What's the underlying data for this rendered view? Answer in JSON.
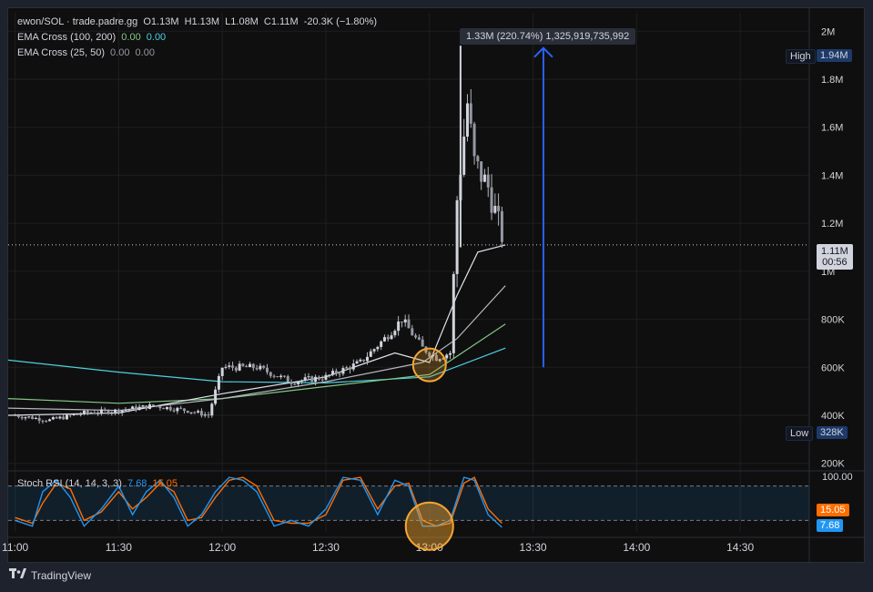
{
  "header": {
    "symbol": "ewon/SOL · trade.padre.gg",
    "open": "O1.13M",
    "high": "H1.13M",
    "low": "L1.08M",
    "close": "C1.11M",
    "change": "-20.3K (−1.80%)"
  },
  "indicators": [
    {
      "name": "EMA Cross (100, 200)",
      "v1": "0.00",
      "v2": "0.00",
      "c1": "#81c784",
      "c2": "#4dd0e1"
    },
    {
      "name": "EMA Cross (25, 50)",
      "v1": "0.00",
      "v2": "0.00",
      "c1": "#9598a1",
      "c2": "#9598a1"
    }
  ],
  "measure": {
    "label": "1.33M (220.74%) 1,325,919,735,992"
  },
  "tags": {
    "high_label": "High",
    "high_value": "1.94M",
    "low_label": "Low",
    "low_value": "328K",
    "price": "1.11M",
    "countdown": "00:56",
    "stoch_k": "7.68",
    "stoch_d": "15.05"
  },
  "stoch": {
    "label": "Stoch RSI (14, 14, 3, 3)",
    "k": "7.68",
    "d": "15.05",
    "top_tick": "100.00"
  },
  "footer": {
    "brand": "TradingView"
  },
  "colors": {
    "up": "#d1d4dc",
    "down": "#d1d4dc",
    "ema200": "#4dd0e1",
    "ema100": "#81c784",
    "ema50": "#b2b5be",
    "ema25": "#e0e3eb",
    "k": "#2196f3",
    "d": "#ff6d00",
    "arrow": "#2962ff",
    "circle": "#f7a630"
  },
  "chart_data": {
    "type": "candlestick",
    "y_ticks": [
      "2M",
      "1.8M",
      "1.6M",
      "1.4M",
      "1.2M",
      "1M",
      "800K",
      "600K",
      "400K",
      "200K"
    ],
    "y_tick_values": [
      2000000,
      1800000,
      1600000,
      1400000,
      1200000,
      1000000,
      800000,
      600000,
      400000,
      200000
    ],
    "x_ticks": [
      "11:00",
      "11:30",
      "12:00",
      "12:30",
      "13:00",
      "13:30",
      "14:00",
      "14:30"
    ],
    "x_tick_minutes": [
      0,
      30,
      60,
      90,
      120,
      150,
      180,
      210
    ],
    "ylim": [
      180000,
      2020000
    ],
    "xlim_minutes": [
      -2,
      230
    ],
    "candles_summary": [
      {
        "t": 0,
        "price": 400000
      },
      {
        "t": 10,
        "price": 380000
      },
      {
        "t": 20,
        "price": 410000
      },
      {
        "t": 30,
        "price": 420000
      },
      {
        "t": 40,
        "price": 440000
      },
      {
        "t": 50,
        "price": 420000
      },
      {
        "t": 56,
        "price": 400000
      },
      {
        "t": 60,
        "price": 600000
      },
      {
        "t": 70,
        "price": 600000
      },
      {
        "t": 80,
        "price": 540000
      },
      {
        "t": 90,
        "price": 560000
      },
      {
        "t": 100,
        "price": 620000
      },
      {
        "t": 107,
        "price": 720000
      },
      {
        "t": 112,
        "price": 800000
      },
      {
        "t": 118,
        "price": 680000
      },
      {
        "t": 122,
        "price": 640000
      },
      {
        "t": 126,
        "price": 660000
      },
      {
        "t": 128,
        "price": 1300000
      },
      {
        "t": 131,
        "price": 1700000
      },
      {
        "t": 133,
        "price": 1450000
      },
      {
        "t": 137,
        "price": 1350000
      },
      {
        "t": 141,
        "price": 1150000
      }
    ],
    "ema_lines": [
      {
        "name": "EMA 200",
        "points": [
          [
            -2,
            630000
          ],
          [
            30,
            580000
          ],
          [
            60,
            540000
          ],
          [
            90,
            535000
          ],
          [
            120,
            560000
          ],
          [
            142,
            680000
          ]
        ]
      },
      {
        "name": "EMA 100",
        "points": [
          [
            -2,
            470000
          ],
          [
            30,
            450000
          ],
          [
            60,
            470000
          ],
          [
            90,
            520000
          ],
          [
            120,
            570000
          ],
          [
            142,
            780000
          ]
        ]
      },
      {
        "name": "EMA 50",
        "points": [
          [
            -2,
            430000
          ],
          [
            30,
            420000
          ],
          [
            60,
            470000
          ],
          [
            90,
            540000
          ],
          [
            118,
            620000
          ],
          [
            128,
            720000
          ],
          [
            142,
            940000
          ]
        ]
      },
      {
        "name": "EMA 25",
        "points": [
          [
            -2,
            400000
          ],
          [
            30,
            410000
          ],
          [
            60,
            490000
          ],
          [
            90,
            560000
          ],
          [
            110,
            660000
          ],
          [
            120,
            620000
          ],
          [
            128,
            900000
          ],
          [
            134,
            1080000
          ],
          [
            142,
            1110000
          ]
        ]
      }
    ],
    "stoch_rsi": {
      "ylim": [
        0,
        100
      ],
      "k": [
        [
          0,
          20
        ],
        [
          5,
          10
        ],
        [
          8,
          70
        ],
        [
          12,
          90
        ],
        [
          16,
          60
        ],
        [
          20,
          10
        ],
        [
          25,
          40
        ],
        [
          30,
          80
        ],
        [
          34,
          30
        ],
        [
          38,
          70
        ],
        [
          42,
          90
        ],
        [
          46,
          60
        ],
        [
          50,
          10
        ],
        [
          54,
          30
        ],
        [
          58,
          70
        ],
        [
          62,
          95
        ],
        [
          66,
          90
        ],
        [
          70,
          70
        ],
        [
          75,
          10
        ],
        [
          80,
          20
        ],
        [
          85,
          10
        ],
        [
          90,
          40
        ],
        [
          95,
          95
        ],
        [
          100,
          90
        ],
        [
          105,
          30
        ],
        [
          110,
          90
        ],
        [
          114,
          80
        ],
        [
          118,
          10
        ],
        [
          122,
          10
        ],
        [
          126,
          20
        ],
        [
          130,
          95
        ],
        [
          133,
          90
        ],
        [
          137,
          30
        ],
        [
          141,
          8
        ]
      ],
      "d": [
        [
          0,
          25
        ],
        [
          5,
          15
        ],
        [
          8,
          50
        ],
        [
          12,
          85
        ],
        [
          16,
          75
        ],
        [
          20,
          20
        ],
        [
          25,
          35
        ],
        [
          30,
          70
        ],
        [
          34,
          40
        ],
        [
          38,
          60
        ],
        [
          42,
          85
        ],
        [
          46,
          70
        ],
        [
          50,
          20
        ],
        [
          54,
          25
        ],
        [
          58,
          60
        ],
        [
          62,
          90
        ],
        [
          66,
          95
        ],
        [
          70,
          80
        ],
        [
          75,
          20
        ],
        [
          80,
          15
        ],
        [
          85,
          15
        ],
        [
          90,
          30
        ],
        [
          95,
          90
        ],
        [
          100,
          95
        ],
        [
          105,
          40
        ],
        [
          110,
          80
        ],
        [
          114,
          85
        ],
        [
          118,
          20
        ],
        [
          122,
          10
        ],
        [
          126,
          15
        ],
        [
          130,
          85
        ],
        [
          133,
          95
        ],
        [
          137,
          40
        ],
        [
          141,
          15
        ]
      ]
    }
  }
}
